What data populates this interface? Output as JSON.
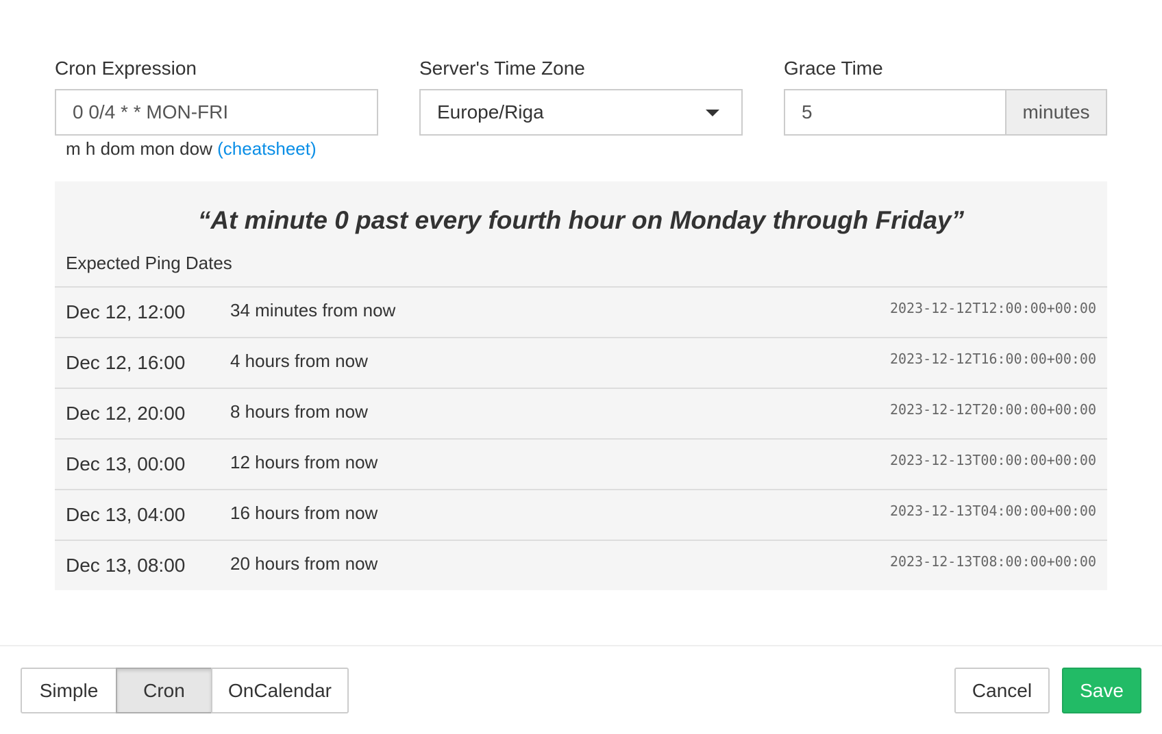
{
  "cron": {
    "label": "Cron Expression",
    "value": "0 0/4 * * MON-FRI",
    "help": "m h dom mon dow",
    "help_link": "(cheatsheet)"
  },
  "tz": {
    "label": "Server's Time Zone",
    "value": "Europe/Riga"
  },
  "grace": {
    "label": "Grace Time",
    "value": "5",
    "unit": "minutes"
  },
  "description": "“At minute 0 past every fourth hour on Monday through Friday”",
  "expected_label": "Expected Ping Dates",
  "rows": [
    {
      "date": "Dec 12, 12:00",
      "relative": "34 minutes from now",
      "iso": "2023-12-12T12:00:00+00:00"
    },
    {
      "date": "Dec 12, 16:00",
      "relative": "4 hours from now",
      "iso": "2023-12-12T16:00:00+00:00"
    },
    {
      "date": "Dec 12, 20:00",
      "relative": "8 hours from now",
      "iso": "2023-12-12T20:00:00+00:00"
    },
    {
      "date": "Dec 13, 00:00",
      "relative": "12 hours from now",
      "iso": "2023-12-13T00:00:00+00:00"
    },
    {
      "date": "Dec 13, 04:00",
      "relative": "16 hours from now",
      "iso": "2023-12-13T04:00:00+00:00"
    },
    {
      "date": "Dec 13, 08:00",
      "relative": "20 hours from now",
      "iso": "2023-12-13T08:00:00+00:00"
    }
  ],
  "footer": {
    "simple": "Simple",
    "cron": "Cron",
    "oncalendar": "OnCalendar",
    "active": "Cron",
    "cancel": "Cancel",
    "save": "Save"
  },
  "colors": {
    "save": "#22bb66",
    "link": "#0a8ee6"
  }
}
